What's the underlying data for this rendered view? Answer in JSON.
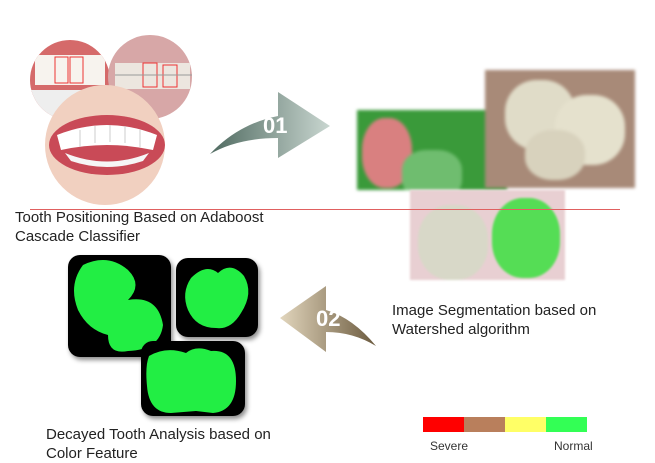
{
  "steps": [
    {
      "number": "01",
      "label_line1": "Tooth Positioning Based on Adaboost",
      "label_line2": "Cascade Classifier"
    },
    {
      "number": "02",
      "label_line1": "Image Segmentation based on",
      "label_line2": "Watershed algorithm"
    },
    {
      "label_line1": "Decayed Tooth Analysis based on",
      "label_line2": "Color Feature"
    }
  ],
  "legend": {
    "colors": [
      "#ff0000",
      "#b97f5c",
      "#ffff66",
      "#33ff55"
    ],
    "severe_label": "Severe",
    "normal_label": "Normal"
  }
}
